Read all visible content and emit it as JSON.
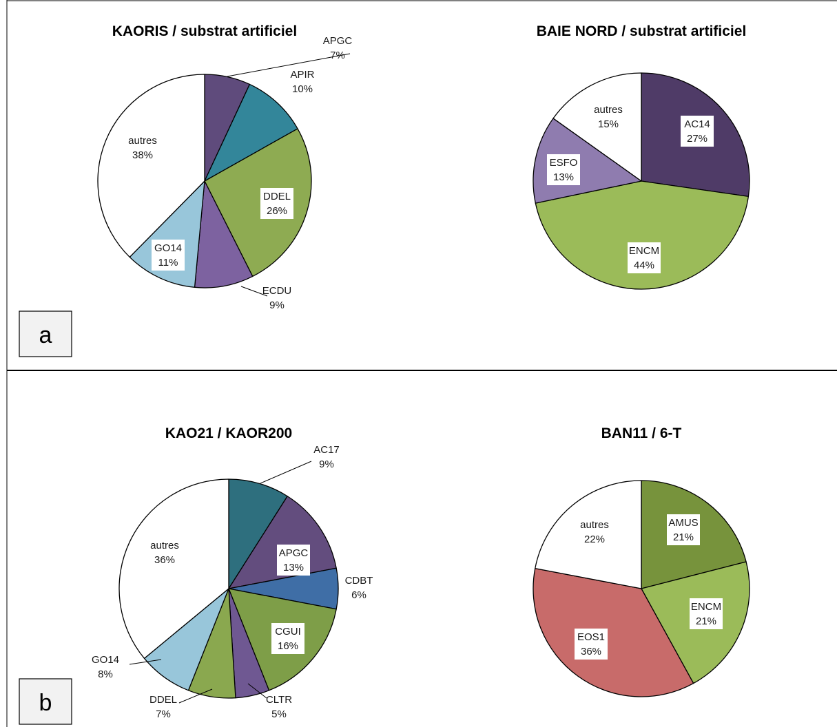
{
  "panels": [
    {
      "letter": "a"
    },
    {
      "letter": "b"
    }
  ],
  "chart_data": [
    {
      "type": "pie",
      "title": "KAORIS / substrat artificiel",
      "slices": [
        {
          "label": "APGC",
          "pct_text": "7%",
          "value": 7,
          "color": "#5f4b7c"
        },
        {
          "label": "APIR",
          "pct_text": "10%",
          "value": 10,
          "color": "#33869a"
        },
        {
          "label": "DDEL",
          "pct_text": "26%",
          "value": 26,
          "color": "#8eab52"
        },
        {
          "label": "ECDU",
          "pct_text": "9%",
          "value": 9,
          "color": "#7d62a0"
        },
        {
          "label": "GO14",
          "pct_text": "11%",
          "value": 11,
          "color": "#98c6da"
        },
        {
          "label": "autres",
          "pct_text": "38%",
          "value": 38,
          "color": "#ffffff"
        }
      ]
    },
    {
      "type": "pie",
      "title": "BAIE NORD / substrat artificiel",
      "slices": [
        {
          "label": "AC14",
          "pct_text": "27%",
          "value": 27,
          "color": "#4f3b67"
        },
        {
          "label": "ENCM",
          "pct_text": "44%",
          "value": 44,
          "color": "#9bbb59"
        },
        {
          "label": "ESFO",
          "pct_text": "13%",
          "value": 13,
          "color": "#8f7caf"
        },
        {
          "label": "autres",
          "pct_text": "15%",
          "value": 15,
          "color": "#ffffff"
        }
      ]
    },
    {
      "type": "pie",
      "title": "KAO21 / KAOR200",
      "slices": [
        {
          "label": "AC17",
          "pct_text": "9%",
          "value": 9,
          "color": "#2e6f7e"
        },
        {
          "label": "APGC",
          "pct_text": "13%",
          "value": 13,
          "color": "#634d7e"
        },
        {
          "label": "CDBT",
          "pct_text": "6%",
          "value": 6,
          "color": "#3f6ea6"
        },
        {
          "label": "CGUI",
          "pct_text": "16%",
          "value": 16,
          "color": "#7e9e48"
        },
        {
          "label": "CLTR",
          "pct_text": "5%",
          "value": 5,
          "color": "#6f5892"
        },
        {
          "label": "DDEL",
          "pct_text": "7%",
          "value": 7,
          "color": "#8aa84f"
        },
        {
          "label": "GO14",
          "pct_text": "8%",
          "value": 8,
          "color": "#98c6da"
        },
        {
          "label": "autres",
          "pct_text": "36%",
          "value": 36,
          "color": "#ffffff"
        }
      ]
    },
    {
      "type": "pie",
      "title": "BAN11 / 6-T",
      "slices": [
        {
          "label": "AMUS",
          "pct_text": "21%",
          "value": 21,
          "color": "#77933c"
        },
        {
          "label": "ENCM",
          "pct_text": "21%",
          "value": 21,
          "color": "#9bbb59"
        },
        {
          "label": "EOS1",
          "pct_text": "36%",
          "value": 36,
          "color": "#c86b6a"
        },
        {
          "label": "autres",
          "pct_text": "22%",
          "value": 22,
          "color": "#ffffff"
        }
      ]
    }
  ]
}
